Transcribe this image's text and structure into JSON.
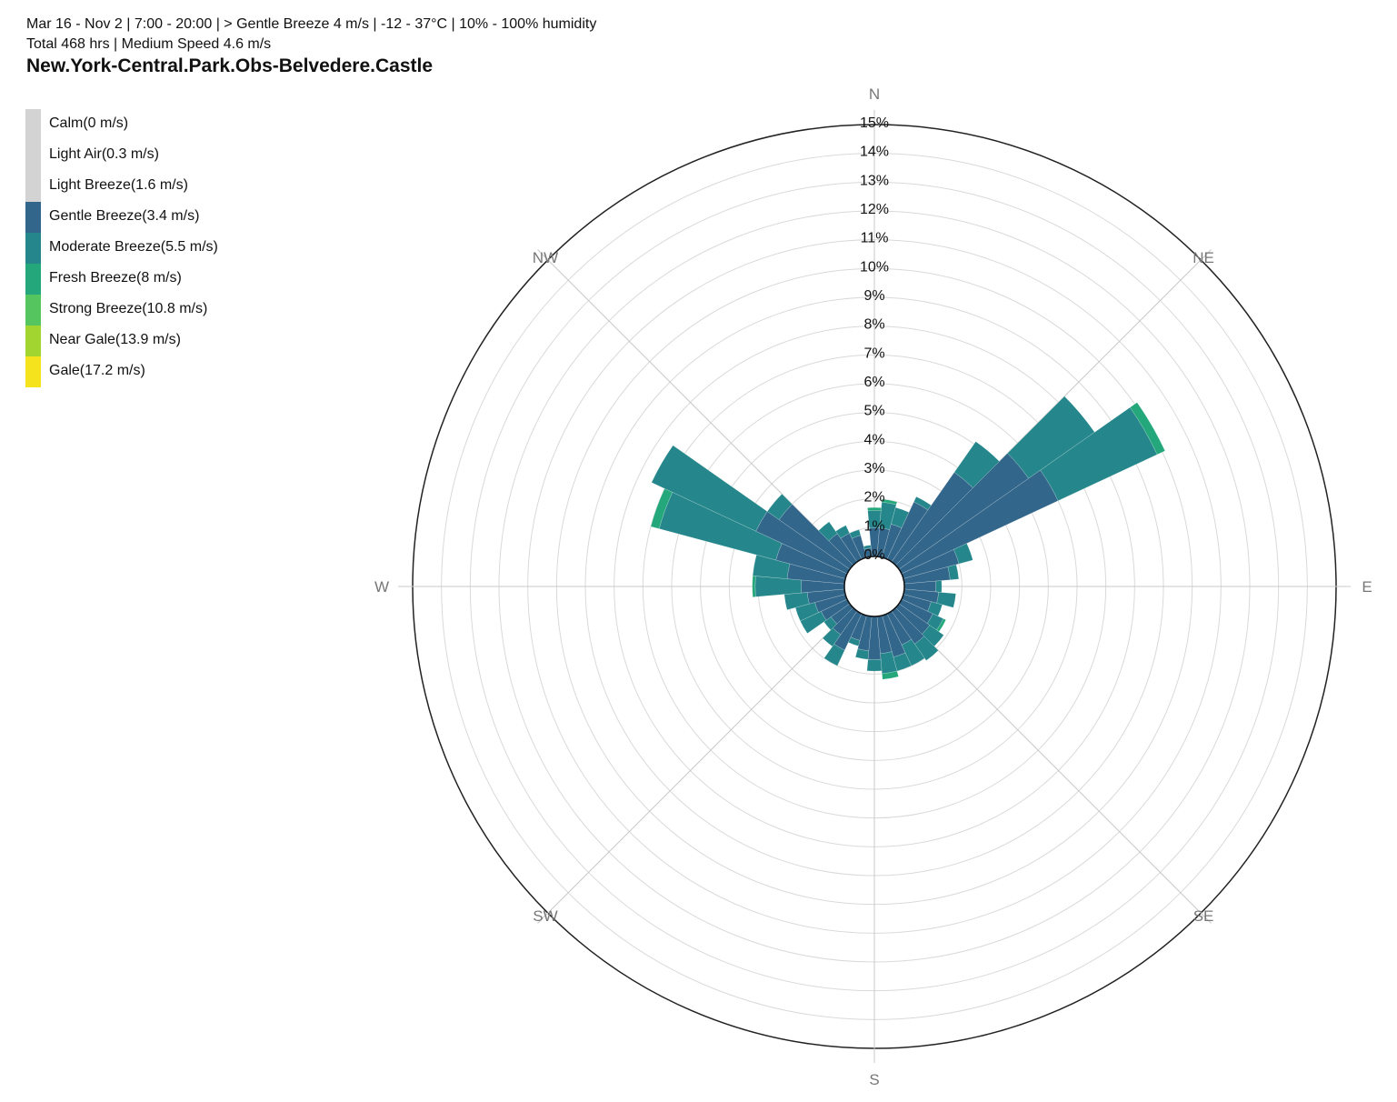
{
  "header": {
    "line1": "Mar 16 - Nov 2 | 7:00 - 20:00 | > Gentle Breeze 4 m/s | -12 - 37°C | 10% - 100% humidity",
    "line2": "Total 468 hrs | Medium Speed 4.6 m/s",
    "title": "New.York-Central.Park.Obs-Belvedere.Castle"
  },
  "chart_data": {
    "type": "windrose",
    "title": "New.York-Central.Park.Obs-Belvedere.Castle",
    "radial_unit": "%",
    "rlim": [
      0,
      15
    ],
    "radial_ticks": [
      "0%",
      "1%",
      "2%",
      "3%",
      "4%",
      "5%",
      "6%",
      "7%",
      "8%",
      "9%",
      "10%",
      "11%",
      "12%",
      "13%",
      "14%",
      "15%"
    ],
    "directions": [
      "N",
      "NE",
      "E",
      "SE",
      "S",
      "SW",
      "W",
      "NW"
    ],
    "grid": true,
    "legend_position": "top-left",
    "speed_classes": [
      {
        "name": "Calm(0 m/s)",
        "color": "#d3d3d3"
      },
      {
        "name": "Light Air(0.3 m/s)",
        "color": "#d3d3d3"
      },
      {
        "name": "Light Breeze(1.6 m/s)",
        "color": "#d3d3d3"
      },
      {
        "name": "Gentle Breeze(3.4 m/s)",
        "color": "#32668a"
      },
      {
        "name": "Moderate Breeze(5.5 m/s)",
        "color": "#25878b"
      },
      {
        "name": "Fresh Breeze(8 m/s)",
        "color": "#23a77b"
      },
      {
        "name": "Strong Breeze(10.8 m/s)",
        "color": "#55c55f"
      },
      {
        "name": "Near Gale(13.9 m/s)",
        "color": "#a3d530"
      },
      {
        "name": "Gale(17.2 m/s)",
        "color": "#f5e31d"
      }
    ],
    "sector_angles_deg": [
      0,
      10,
      20,
      30,
      40,
      50,
      60,
      70,
      80,
      90,
      100,
      110,
      120,
      130,
      140,
      150,
      160,
      170,
      180,
      190,
      200,
      210,
      220,
      230,
      240,
      250,
      260,
      270,
      280,
      290,
      300,
      310,
      320,
      330,
      340,
      350
    ],
    "series": [
      {
        "name": "Gentle Breeze(3.4 m/s)",
        "values": [
          1.0,
          1.0,
          1.2,
          2.2,
          3.8,
          5.5,
          6.0,
          2.0,
          1.6,
          1.1,
          1.2,
          1.0,
          1.2,
          1.3,
          1.4,
          1.2,
          1.5,
          1.3,
          1.5,
          1.2,
          0.9,
          1.4,
          1.0,
          0.8,
          1.0,
          1.1,
          1.3,
          1.5,
          2.0,
          2.5,
          3.5,
          3.0,
          1.2,
          1.0,
          0.8,
          0.3
        ]
      },
      {
        "name": "Moderate Breeze(5.5 m/s)",
        "values": [
          0.6,
          0.9,
          0.6,
          0.2,
          1.3,
          2.8,
          3.8,
          0.5,
          0.3,
          0.2,
          0.6,
          0.4,
          0.4,
          0.6,
          0.7,
          0.8,
          0.5,
          0.7,
          0.4,
          0.3,
          0.2,
          0.6,
          0.5,
          0.3,
          0.8,
          0.7,
          0.8,
          1.6,
          1.2,
          4.2,
          4.0,
          0.5,
          0.5,
          0.3,
          0.2,
          0.1
        ]
      },
      {
        "name": "Fresh Breeze(8 m/s)",
        "values": [
          0.1,
          0.1,
          0,
          0,
          0,
          0,
          0.3,
          0,
          0,
          0,
          0,
          0,
          0.1,
          0,
          0,
          0,
          0,
          0.2,
          0,
          0,
          0,
          0,
          0,
          0,
          0,
          0,
          0,
          0.1,
          0,
          0.3,
          0,
          0,
          0,
          0,
          0,
          0
        ]
      },
      {
        "name": "Strong Breeze(10.8 m/s)",
        "values": [
          0,
          0,
          0,
          0,
          0,
          0,
          0,
          0,
          0,
          0,
          0,
          0,
          0,
          0,
          0,
          0,
          0,
          0,
          0,
          0,
          0,
          0,
          0,
          0,
          0,
          0,
          0,
          0,
          0,
          0,
          0,
          0,
          0,
          0,
          0,
          0
        ]
      },
      {
        "name": "Near Gale(13.9 m/s)",
        "values": [
          0,
          0,
          0,
          0,
          0,
          0,
          0,
          0,
          0,
          0,
          0,
          0,
          0,
          0,
          0,
          0,
          0,
          0,
          0,
          0,
          0,
          0,
          0,
          0,
          0,
          0,
          0,
          0,
          0,
          0,
          0,
          0,
          0,
          0,
          0,
          0
        ]
      },
      {
        "name": "Gale(17.2 m/s)",
        "values": [
          0,
          0,
          0,
          0,
          0,
          0,
          0,
          0,
          0,
          0,
          0,
          0,
          0,
          0,
          0,
          0,
          0,
          0,
          0,
          0,
          0,
          0,
          0,
          0,
          0,
          0,
          0,
          0,
          0,
          0,
          0,
          0,
          0,
          0,
          0,
          0
        ]
      }
    ]
  }
}
